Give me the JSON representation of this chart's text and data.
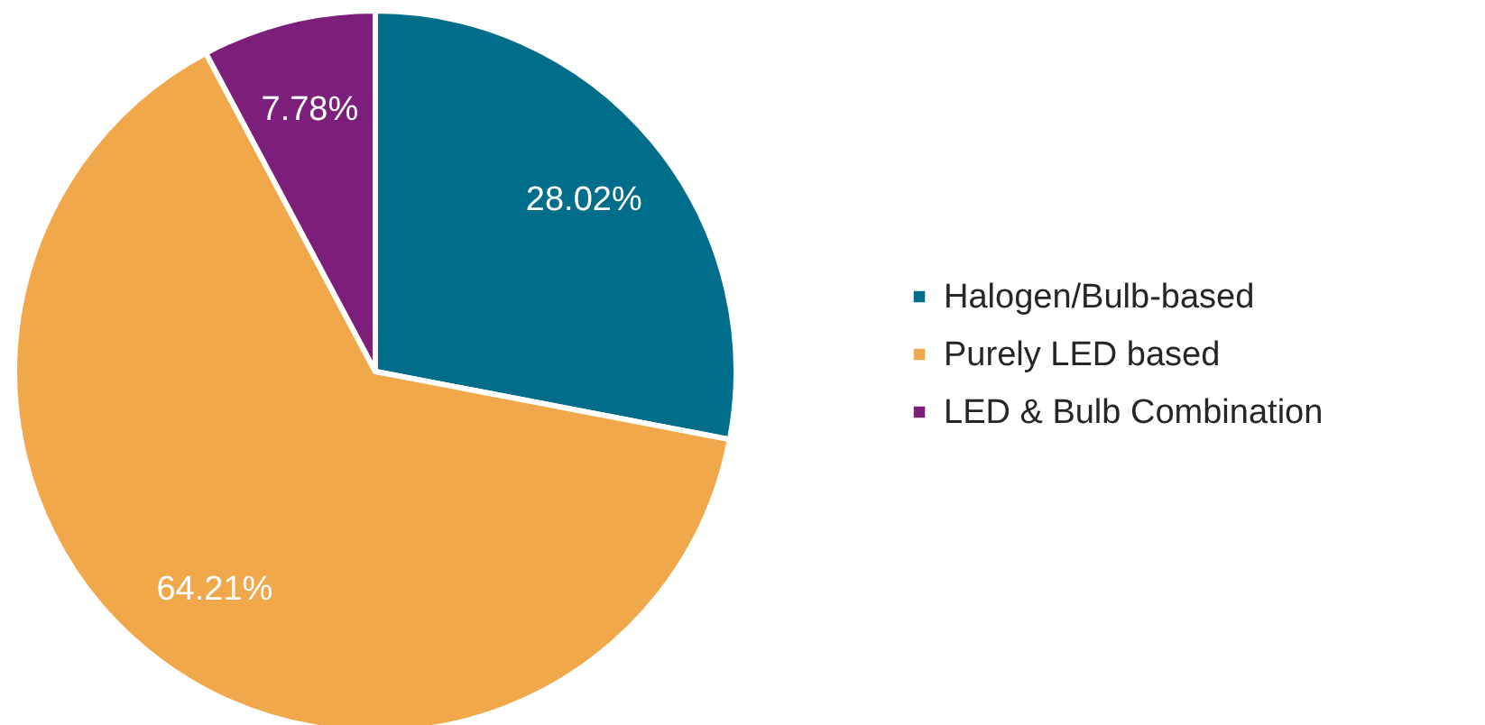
{
  "chart_data": {
    "type": "pie",
    "categories": [
      "Halogen/Bulb-based",
      "Purely LED based",
      "LED & Bulb Combination"
    ],
    "values": [
      28.02,
      64.21,
      7.78
    ],
    "colors": [
      "#006d8a",
      "#f0a84a",
      "#7b1f7a"
    ],
    "value_labels": [
      "28.02%",
      "64.21%",
      "7.78%"
    ],
    "legend": "right"
  }
}
